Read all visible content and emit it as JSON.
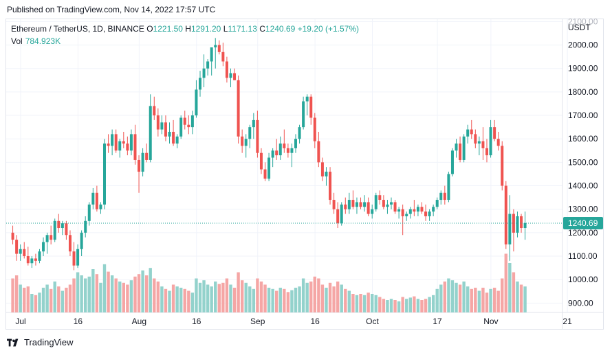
{
  "published": "Published on TradingView.com, Nov 14, 2022 17:57 UTC",
  "legend": {
    "symbol": "Ethereum / TetherUS, 1D, BINANCE",
    "o_label": "O",
    "o": "1221.50",
    "h_label": "H",
    "h": "1291.20",
    "l_label": "L",
    "l": "1171.13",
    "c_label": "C",
    "c": "1240.69",
    "change": "+19.20 (+1.57%)"
  },
  "volume": {
    "label": "Vol",
    "value": "784.923K"
  },
  "brand": "TradingView",
  "colors": {
    "up": "#26a69a",
    "down": "#ef5350",
    "up_vol": "#93d2cc",
    "down_vol": "#f5a6a5",
    "grid": "#f0f3fa",
    "price_line": "#26a69a"
  },
  "chart_data": {
    "type": "candlestick",
    "currency_label": "USDT",
    "last_price": "1240.69",
    "y_ticks": [
      "2100.00",
      "2000.00",
      "1900.00",
      "1800.00",
      "1700.00",
      "1600.00",
      "1500.00",
      "1400.00",
      "1300.00",
      "1200.00",
      "1100.00",
      "1000.00",
      "900.00"
    ],
    "ylim": [
      860,
      2110
    ],
    "x_ticks": [
      "Jul",
      "16",
      "Aug",
      "16",
      "Sep",
      "16",
      "Oct",
      "17",
      "Nov",
      "21"
    ],
    "x_tick_days": [
      0,
      15,
      31,
      46,
      62,
      77,
      92,
      109,
      123,
      143
    ],
    "days": 142,
    "volume_max": 1.0,
    "candles": [
      [
        1,
        1200,
        1230,
        1150,
        1170,
        0.55
      ],
      [
        2,
        1170,
        1190,
        1080,
        1110,
        0.6
      ],
      [
        3,
        1110,
        1150,
        1080,
        1130,
        0.45
      ],
      [
        4,
        1130,
        1160,
        1090,
        1100,
        0.4
      ],
      [
        5,
        1100,
        1140,
        1060,
        1070,
        0.42
      ],
      [
        6,
        1070,
        1100,
        1050,
        1090,
        0.3
      ],
      [
        7,
        1090,
        1110,
        1060,
        1080,
        0.28
      ],
      [
        8,
        1080,
        1130,
        1070,
        1120,
        0.32
      ],
      [
        9,
        1120,
        1180,
        1100,
        1160,
        0.4
      ],
      [
        10,
        1160,
        1200,
        1110,
        1190,
        0.45
      ],
      [
        11,
        1190,
        1230,
        1150,
        1170,
        0.38
      ],
      [
        12,
        1170,
        1260,
        1160,
        1250,
        0.5
      ],
      [
        13,
        1250,
        1280,
        1200,
        1220,
        0.42
      ],
      [
        14,
        1220,
        1250,
        1190,
        1240,
        0.35
      ],
      [
        15,
        1240,
        1250,
        1170,
        1190,
        0.4
      ],
      [
        16,
        1190,
        1210,
        1100,
        1120,
        0.45
      ],
      [
        17,
        1120,
        1160,
        1040,
        1060,
        0.55
      ],
      [
        18,
        1060,
        1150,
        1050,
        1130,
        0.65
      ],
      [
        19,
        1130,
        1210,
        1100,
        1200,
        0.6
      ],
      [
        20,
        1200,
        1270,
        1180,
        1250,
        0.55
      ],
      [
        21,
        1250,
        1330,
        1230,
        1320,
        0.58
      ],
      [
        22,
        1320,
        1390,
        1300,
        1370,
        0.7
      ],
      [
        23,
        1370,
        1400,
        1290,
        1300,
        0.62
      ],
      [
        24,
        1300,
        1330,
        1280,
        1320,
        0.48
      ],
      [
        25,
        1320,
        1600,
        1300,
        1580,
        0.78
      ],
      [
        26,
        1580,
        1620,
        1540,
        1570,
        0.66
      ],
      [
        27,
        1570,
        1640,
        1530,
        1620,
        0.6
      ],
      [
        28,
        1620,
        1640,
        1540,
        1550,
        0.55
      ],
      [
        29,
        1550,
        1600,
        1520,
        1590,
        0.5
      ],
      [
        30,
        1590,
        1630,
        1560,
        1580,
        0.48
      ],
      [
        31,
        1580,
        1610,
        1530,
        1550,
        0.45
      ],
      [
        32,
        1550,
        1640,
        1530,
        1620,
        0.52
      ],
      [
        33,
        1620,
        1660,
        1490,
        1510,
        0.58
      ],
      [
        34,
        1510,
        1530,
        1370,
        1460,
        0.62
      ],
      [
        35,
        1460,
        1560,
        1440,
        1540,
        0.68
      ],
      [
        36,
        1540,
        1580,
        1500,
        1510,
        0.6
      ],
      [
        37,
        1510,
        1790,
        1500,
        1740,
        0.72
      ],
      [
        38,
        1740,
        1780,
        1680,
        1700,
        0.55
      ],
      [
        39,
        1700,
        1730,
        1610,
        1640,
        0.5
      ],
      [
        40,
        1640,
        1700,
        1620,
        1670,
        0.42
      ],
      [
        41,
        1670,
        1700,
        1590,
        1610,
        0.38
      ],
      [
        42,
        1610,
        1670,
        1580,
        1630,
        0.35
      ],
      [
        43,
        1630,
        1680,
        1570,
        1580,
        0.45
      ],
      [
        44,
        1580,
        1620,
        1560,
        1610,
        0.42
      ],
      [
        45,
        1610,
        1700,
        1600,
        1690,
        0.4
      ],
      [
        46,
        1690,
        1720,
        1640,
        1660,
        0.38
      ],
      [
        47,
        1660,
        1700,
        1620,
        1650,
        0.35
      ],
      [
        48,
        1650,
        1720,
        1620,
        1700,
        0.32
      ],
      [
        49,
        1700,
        1850,
        1690,
        1810,
        0.55
      ],
      [
        50,
        1810,
        1890,
        1780,
        1860,
        0.48
      ],
      [
        51,
        1860,
        1960,
        1820,
        1900,
        0.52
      ],
      [
        52,
        1900,
        1940,
        1870,
        1930,
        0.45
      ],
      [
        53,
        1930,
        1980,
        1870,
        1990,
        0.42
      ],
      [
        54,
        1990,
        2030,
        1900,
        2000,
        0.5
      ],
      [
        55,
        2000,
        2020,
        1960,
        1970,
        0.46
      ],
      [
        56,
        1970,
        2010,
        1910,
        1930,
        0.48
      ],
      [
        57,
        1930,
        1950,
        1840,
        1860,
        0.55
      ],
      [
        58,
        1860,
        1900,
        1820,
        1880,
        0.45
      ],
      [
        59,
        1880,
        1900,
        1850,
        1850,
        0.4
      ],
      [
        60,
        1850,
        1870,
        1580,
        1610,
        0.65
      ],
      [
        61,
        1610,
        1640,
        1540,
        1570,
        0.52
      ],
      [
        62,
        1570,
        1620,
        1520,
        1600,
        0.48
      ],
      [
        63,
        1600,
        1660,
        1560,
        1650,
        0.42
      ],
      [
        64,
        1650,
        1710,
        1600,
        1680,
        0.38
      ],
      [
        65,
        1680,
        1720,
        1520,
        1540,
        0.55
      ],
      [
        66,
        1540,
        1560,
        1450,
        1470,
        0.5
      ],
      [
        67,
        1470,
        1500,
        1420,
        1430,
        0.45
      ],
      [
        68,
        1430,
        1540,
        1420,
        1520,
        0.4
      ],
      [
        69,
        1520,
        1560,
        1480,
        1550,
        0.38
      ],
      [
        70,
        1550,
        1600,
        1510,
        1530,
        0.35
      ],
      [
        71,
        1530,
        1610,
        1510,
        1580,
        0.4
      ],
      [
        72,
        1580,
        1640,
        1540,
        1560,
        0.38
      ],
      [
        73,
        1560,
        1580,
        1520,
        1540,
        0.33
      ],
      [
        74,
        1540,
        1580,
        1480,
        1560,
        0.36
      ],
      [
        75,
        1560,
        1620,
        1540,
        1600,
        0.4
      ],
      [
        76,
        1600,
        1660,
        1580,
        1650,
        0.42
      ],
      [
        77,
        1650,
        1780,
        1640,
        1760,
        0.55
      ],
      [
        78,
        1760,
        1790,
        1700,
        1780,
        0.48
      ],
      [
        79,
        1780,
        1790,
        1660,
        1690,
        0.5
      ],
      [
        80,
        1690,
        1710,
        1560,
        1590,
        0.58
      ],
      [
        81,
        1590,
        1630,
        1480,
        1500,
        0.55
      ],
      [
        82,
        1500,
        1520,
        1420,
        1440,
        0.45
      ],
      [
        83,
        1440,
        1480,
        1400,
        1460,
        0.4
      ],
      [
        84,
        1460,
        1480,
        1320,
        1340,
        0.48
      ],
      [
        85,
        1340,
        1370,
        1280,
        1300,
        0.42
      ],
      [
        86,
        1300,
        1330,
        1220,
        1240,
        0.5
      ],
      [
        87,
        1240,
        1330,
        1230,
        1320,
        0.45
      ],
      [
        88,
        1320,
        1350,
        1280,
        1300,
        0.38
      ],
      [
        89,
        1300,
        1370,
        1280,
        1340,
        0.35
      ],
      [
        90,
        1340,
        1380,
        1300,
        1310,
        0.3
      ],
      [
        91,
        1310,
        1350,
        1280,
        1330,
        0.28
      ],
      [
        92,
        1330,
        1350,
        1300,
        1310,
        0.3
      ],
      [
        93,
        1310,
        1360,
        1290,
        1330,
        0.28
      ],
      [
        94,
        1330,
        1350,
        1270,
        1280,
        0.32
      ],
      [
        95,
        1280,
        1320,
        1260,
        1300,
        0.3
      ],
      [
        96,
        1300,
        1370,
        1290,
        1360,
        0.28
      ],
      [
        97,
        1360,
        1380,
        1320,
        1340,
        0.25
      ],
      [
        98,
        1340,
        1360,
        1300,
        1310,
        0.22
      ],
      [
        99,
        1310,
        1340,
        1280,
        1320,
        0.2
      ],
      [
        100,
        1320,
        1350,
        1300,
        1330,
        0.22
      ],
      [
        101,
        1330,
        1340,
        1280,
        1290,
        0.2
      ],
      [
        102,
        1290,
        1310,
        1260,
        1300,
        0.18
      ],
      [
        103,
        1300,
        1320,
        1190,
        1270,
        0.25
      ],
      [
        104,
        1270,
        1290,
        1250,
        1280,
        0.22
      ],
      [
        105,
        1280,
        1310,
        1260,
        1300,
        0.24
      ],
      [
        106,
        1300,
        1340,
        1270,
        1290,
        0.26
      ],
      [
        107,
        1290,
        1320,
        1270,
        1310,
        0.22
      ],
      [
        108,
        1310,
        1330,
        1280,
        1290,
        0.2
      ],
      [
        109,
        1290,
        1320,
        1250,
        1270,
        0.22
      ],
      [
        110,
        1270,
        1300,
        1250,
        1290,
        0.25
      ],
      [
        111,
        1290,
        1320,
        1270,
        1310,
        0.28
      ],
      [
        112,
        1310,
        1350,
        1300,
        1340,
        0.38
      ],
      [
        113,
        1340,
        1380,
        1320,
        1370,
        0.45
      ],
      [
        114,
        1370,
        1400,
        1320,
        1340,
        0.5
      ],
      [
        115,
        1340,
        1460,
        1330,
        1450,
        0.55
      ],
      [
        116,
        1450,
        1560,
        1440,
        1550,
        0.52
      ],
      [
        117,
        1550,
        1600,
        1520,
        1580,
        0.48
      ],
      [
        118,
        1580,
        1610,
        1500,
        1510,
        0.45
      ],
      [
        119,
        1510,
        1620,
        1500,
        1610,
        0.5
      ],
      [
        120,
        1610,
        1660,
        1580,
        1640,
        0.42
      ],
      [
        121,
        1640,
        1680,
        1600,
        1620,
        0.38
      ],
      [
        122,
        1620,
        1640,
        1560,
        1580,
        0.4
      ],
      [
        123,
        1580,
        1610,
        1530,
        1590,
        0.35
      ],
      [
        124,
        1590,
        1650,
        1510,
        1560,
        0.4
      ],
      [
        125,
        1560,
        1600,
        1500,
        1530,
        0.32
      ],
      [
        126,
        1530,
        1680,
        1520,
        1650,
        0.38
      ],
      [
        127,
        1650,
        1680,
        1590,
        1600,
        0.4
      ],
      [
        128,
        1600,
        1630,
        1550,
        1570,
        0.35
      ],
      [
        129,
        1570,
        1590,
        1380,
        1400,
        0.55
      ],
      [
        130,
        1400,
        1420,
        1130,
        1150,
        0.95
      ],
      [
        131,
        1150,
        1360,
        1080,
        1280,
        0.8
      ],
      [
        132,
        1280,
        1300,
        1120,
        1200,
        0.65
      ],
      [
        133,
        1200,
        1290,
        1180,
        1270,
        0.5
      ],
      [
        134,
        1270,
        1280,
        1200,
        1220,
        0.45
      ],
      [
        135,
        1220,
        1290,
        1170,
        1241,
        0.42
      ]
    ]
  }
}
